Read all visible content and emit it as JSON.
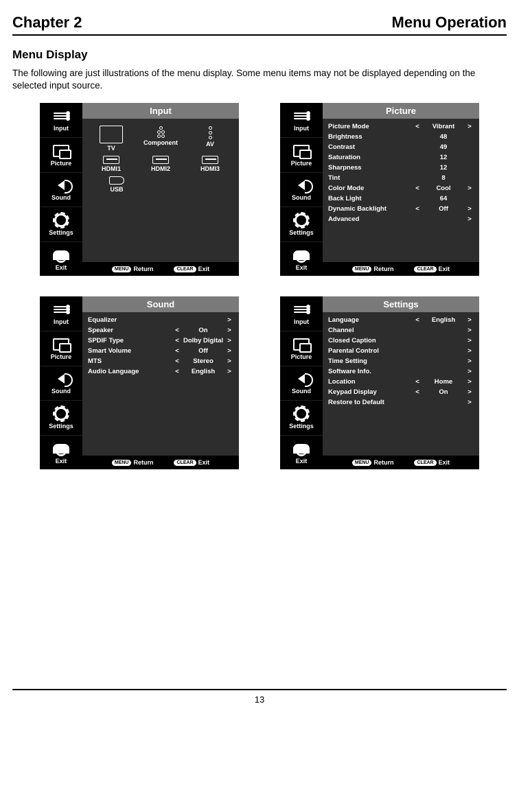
{
  "chapter_label": "Chapter 2",
  "chapter_title": "Menu Operation",
  "section_title": "Menu Display",
  "intro_text": "The following are just illustrations of the menu display. Some menu items may not be displayed depending on the selected input source.",
  "page_number": "13",
  "sidebar": {
    "items": [
      "Input",
      "Picture",
      "Sound",
      "Settings",
      "Exit"
    ]
  },
  "footer": {
    "return_btn": "MENU",
    "return_label": "Return",
    "exit_btn": "CLEAR",
    "exit_label": "Exit"
  },
  "panels": {
    "input": {
      "title": "Input",
      "row1": [
        "TV",
        "Component",
        "AV"
      ],
      "row2": [
        "HDMI1",
        "HDMI2",
        "HDMI3"
      ],
      "row3": [
        "USB"
      ]
    },
    "picture": {
      "title": "Picture",
      "rows": [
        {
          "label": "Picture Mode",
          "lt": "<",
          "val": "Vibrant",
          "gt": ">"
        },
        {
          "label": "Brightness",
          "lt": "",
          "val": "48",
          "gt": ""
        },
        {
          "label": "Contrast",
          "lt": "",
          "val": "49",
          "gt": ""
        },
        {
          "label": "Saturation",
          "lt": "",
          "val": "12",
          "gt": ""
        },
        {
          "label": "Sharpness",
          "lt": "",
          "val": "12",
          "gt": ""
        },
        {
          "label": "Tint",
          "lt": "",
          "val": "8",
          "gt": ""
        },
        {
          "label": "Color Mode",
          "lt": "<",
          "val": "Cool",
          "gt": ">"
        },
        {
          "label": "Back Light",
          "lt": "",
          "val": "64",
          "gt": ""
        },
        {
          "label": "Dynamic Backlight",
          "lt": "<",
          "val": "Off",
          "gt": ">"
        },
        {
          "label": "Advanced",
          "lt": "",
          "val": "",
          "gt": ">"
        }
      ]
    },
    "sound": {
      "title": "Sound",
      "rows": [
        {
          "label": "Equalizer",
          "lt": "",
          "val": "",
          "gt": ">"
        },
        {
          "label": "Speaker",
          "lt": "<",
          "val": "On",
          "gt": ">"
        },
        {
          "label": "SPDIF Type",
          "lt": "<",
          "val": "Dolby Digital",
          "gt": ">"
        },
        {
          "label": "Smart Volume",
          "lt": "<",
          "val": "Off",
          "gt": ">"
        },
        {
          "label": "MTS",
          "lt": "<",
          "val": "Stereo",
          "gt": ">"
        },
        {
          "label": "Audio Language",
          "lt": "<",
          "val": "English",
          "gt": ">"
        }
      ]
    },
    "settings": {
      "title": "Settings",
      "rows": [
        {
          "label": "Language",
          "lt": "<",
          "val": "English",
          "gt": ">"
        },
        {
          "label": "Channel",
          "lt": "",
          "val": "",
          "gt": ">"
        },
        {
          "label": "Closed Caption",
          "lt": "",
          "val": "",
          "gt": ">"
        },
        {
          "label": "Parental Control",
          "lt": "",
          "val": "",
          "gt": ">"
        },
        {
          "label": "Time Setting",
          "lt": "",
          "val": "",
          "gt": ">"
        },
        {
          "label": "Software Info.",
          "lt": "",
          "val": "",
          "gt": ">"
        },
        {
          "label": "Location",
          "lt": "<",
          "val": "Home",
          "gt": ">"
        },
        {
          "label": "Keypad Display",
          "lt": "<",
          "val": "On",
          "gt": ">"
        },
        {
          "label": "Restore to Default",
          "lt": "",
          "val": "",
          "gt": ">"
        }
      ]
    }
  }
}
